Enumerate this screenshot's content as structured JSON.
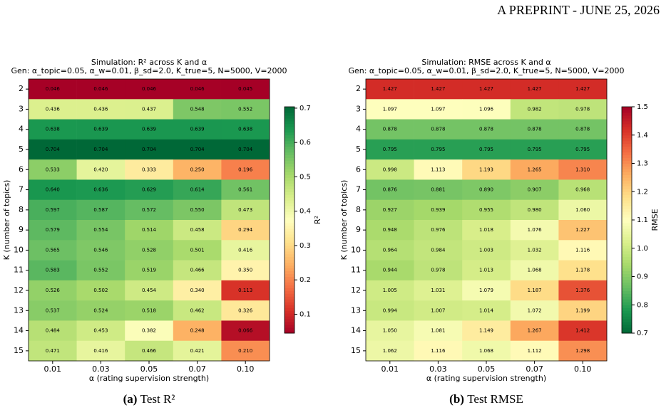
{
  "header": "A PREPRINT - JUNE 25, 2026",
  "chart_data": [
    {
      "type": "heatmap",
      "title": "Simulation: R² across K and α",
      "subtitle": "Gen: α_topic=0.05, α_w=0.01, β_sd=2.0, K_true=5, N=5000, V=2000",
      "x_label": "α (rating supervision strength)",
      "y_label": "K (number of topics)",
      "colorbar_label": "R²",
      "caption_label": "(a)",
      "caption_text": "Test R²",
      "colormap": "RdYlGn",
      "x_categories": [
        "0.01",
        "0.03",
        "0.05",
        "0.07",
        "0.10"
      ],
      "y_categories": [
        2,
        3,
        4,
        5,
        6,
        7,
        8,
        9,
        10,
        11,
        12,
        13,
        14,
        15
      ],
      "values": [
        [
          0.046,
          0.046,
          0.046,
          0.046,
          0.045
        ],
        [
          0.436,
          0.436,
          0.437,
          0.548,
          0.552
        ],
        [
          0.638,
          0.639,
          0.639,
          0.639,
          0.638
        ],
        [
          0.704,
          0.704,
          0.704,
          0.704,
          0.704
        ],
        [
          0.533,
          0.42,
          0.333,
          0.25,
          0.196
        ],
        [
          0.64,
          0.636,
          0.629,
          0.614,
          0.561
        ],
        [
          0.597,
          0.587,
          0.572,
          0.55,
          0.473
        ],
        [
          0.579,
          0.554,
          0.514,
          0.458,
          0.294
        ],
        [
          0.565,
          0.546,
          0.528,
          0.501,
          0.416
        ],
        [
          0.583,
          0.552,
          0.519,
          0.466,
          0.35
        ],
        [
          0.526,
          0.502,
          0.454,
          0.34,
          0.113
        ],
        [
          0.537,
          0.524,
          0.518,
          0.462,
          0.326
        ],
        [
          0.484,
          0.453,
          0.382,
          0.248,
          0.066
        ],
        [
          0.471,
          0.416,
          0.466,
          0.421,
          0.21
        ]
      ],
      "value_labels": [
        [
          "0.046",
          "0.046",
          "0.046",
          "0.046",
          "0.045"
        ],
        [
          "0.436",
          "0.436",
          "0.437",
          "0.548",
          "0.552"
        ],
        [
          "0.638",
          "0.639",
          "0.639",
          "0.639",
          "0.638"
        ],
        [
          "0.704",
          "0.704",
          "0.704",
          "0.704",
          "0.704"
        ],
        [
          "0.533",
          "0.420",
          "0.333",
          "0.250",
          "0.196"
        ],
        [
          "0.640",
          "0.636",
          "0.629",
          "0.614",
          "0.561"
        ],
        [
          "0.597",
          "0.587",
          "0.572",
          "0.550",
          "0.473"
        ],
        [
          "0.579",
          "0.554",
          "0.514",
          "0.458",
          "0.294"
        ],
        [
          "0.565",
          "0.546",
          "0.528",
          "0.501",
          "0.416"
        ],
        [
          "0.583",
          "0.552",
          "0.519",
          "0.466",
          "0.350"
        ],
        [
          "0.526",
          "0.502",
          "0.454",
          "0.340",
          "0.113"
        ],
        [
          "0.537",
          "0.524",
          "0.518",
          "0.462",
          "0.326"
        ],
        [
          "0.484",
          "0.453",
          "0.382",
          "0.248",
          "0.066"
        ],
        [
          "0.471",
          "0.416",
          "0.466",
          "0.421",
          "0.210"
        ]
      ],
      "clim": [
        0.045,
        0.704
      ],
      "cticks": [
        0.1,
        0.2,
        0.3,
        0.4,
        0.5,
        0.6,
        0.7
      ]
    },
    {
      "type": "heatmap",
      "title": "Simulation: RMSE across K and α",
      "subtitle": "Gen: α_topic=0.05, α_w=0.01, β_sd=2.0, K_true=5, N=5000, V=2000",
      "x_label": "α (rating supervision strength)",
      "y_label": "K (number of topics)",
      "colorbar_label": "RMSE",
      "caption_label": "(b)",
      "caption_text": "Test RMSE",
      "colormap": "RdYlGn_r",
      "x_categories": [
        "0.01",
        "0.03",
        "0.05",
        "0.07",
        "0.10"
      ],
      "y_categories": [
        2,
        3,
        4,
        5,
        6,
        7,
        8,
        9,
        10,
        11,
        12,
        13,
        14,
        15
      ],
      "values": [
        [
          1.427,
          1.427,
          1.427,
          1.427,
          1.427
        ],
        [
          1.097,
          1.097,
          1.096,
          0.982,
          0.978
        ],
        [
          0.878,
          0.878,
          0.878,
          0.878,
          0.878
        ],
        [
          0.795,
          0.795,
          0.795,
          0.795,
          0.795
        ],
        [
          0.998,
          1.113,
          1.193,
          1.265,
          1.31
        ],
        [
          0.876,
          0.881,
          0.89,
          0.907,
          0.968
        ],
        [
          0.927,
          0.939,
          0.955,
          0.98,
          1.06
        ],
        [
          0.948,
          0.976,
          1.018,
          1.076,
          1.227
        ],
        [
          0.964,
          0.984,
          1.003,
          1.032,
          1.116
        ],
        [
          0.944,
          0.978,
          1.013,
          1.068,
          1.178
        ],
        [
          1.005,
          1.031,
          1.079,
          1.187,
          1.376
        ],
        [
          0.994,
          1.007,
          1.014,
          1.072,
          1.199
        ],
        [
          1.05,
          1.081,
          1.149,
          1.267,
          1.412
        ],
        [
          1.062,
          1.116,
          1.068,
          1.112,
          1.298
        ]
      ],
      "value_labels": [
        [
          "1.427",
          "1.427",
          "1.427",
          "1.427",
          "1.427"
        ],
        [
          "1.097",
          "1.097",
          "1.096",
          "0.982",
          "0.978"
        ],
        [
          "0.878",
          "0.878",
          "0.878",
          "0.878",
          "0.878"
        ],
        [
          "0.795",
          "0.795",
          "0.795",
          "0.795",
          "0.795"
        ],
        [
          "0.998",
          "1.113",
          "1.193",
          "1.265",
          "1.310"
        ],
        [
          "0.876",
          "0.881",
          "0.890",
          "0.907",
          "0.968"
        ],
        [
          "0.927",
          "0.939",
          "0.955",
          "0.980",
          "1.060"
        ],
        [
          "0.948",
          "0.976",
          "1.018",
          "1.076",
          "1.227"
        ],
        [
          "0.964",
          "0.984",
          "1.003",
          "1.032",
          "1.116"
        ],
        [
          "0.944",
          "0.978",
          "1.013",
          "1.068",
          "1.178"
        ],
        [
          "1.005",
          "1.031",
          "1.079",
          "1.187",
          "1.376"
        ],
        [
          "0.994",
          "1.007",
          "1.014",
          "1.072",
          "1.199"
        ],
        [
          "1.050",
          "1.081",
          "1.149",
          "1.267",
          "1.412"
        ],
        [
          "1.062",
          "1.116",
          "1.068",
          "1.112",
          "1.298"
        ]
      ],
      "clim": [
        0.7,
        1.5
      ],
      "cticks": [
        0.7,
        0.8,
        0.9,
        {
          "value": 1,
          "label": "1.0"
        },
        1.1,
        1.2,
        1.3,
        1.4,
        1.5
      ]
    }
  ]
}
